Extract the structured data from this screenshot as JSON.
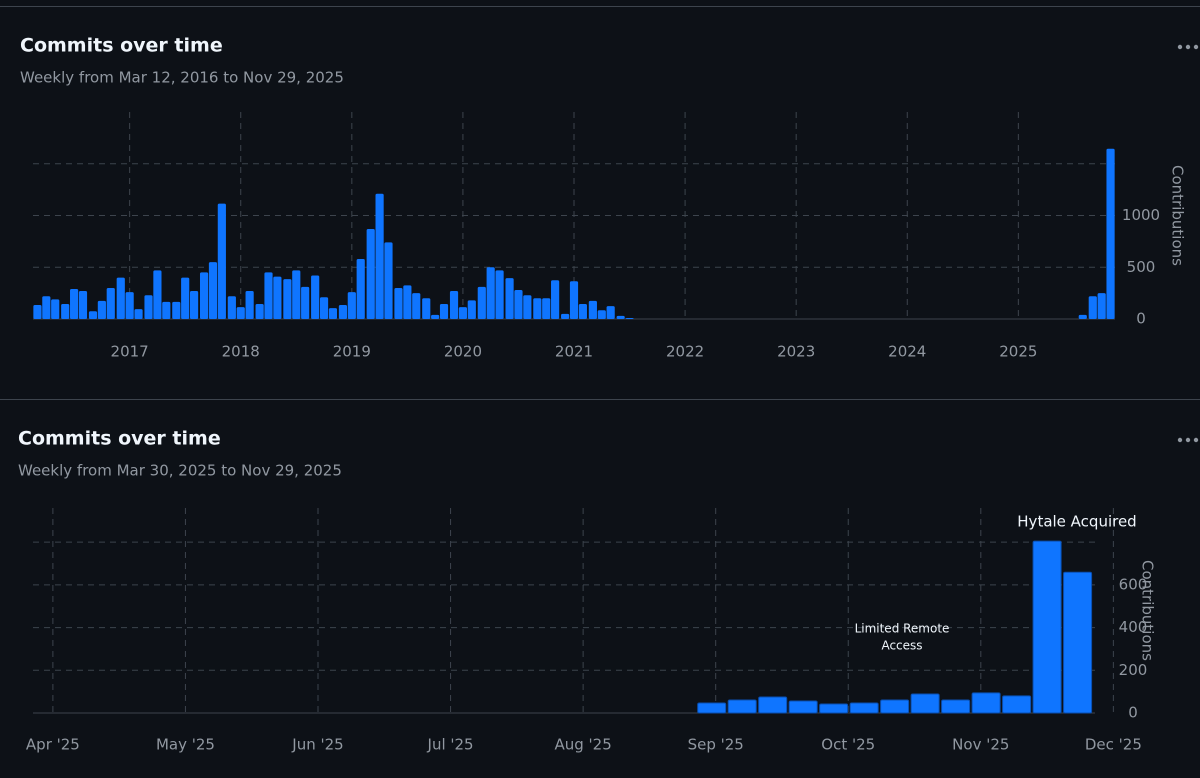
{
  "chart_data": [
    {
      "type": "bar",
      "title": "Commits over time",
      "subtitle": "Weekly from Mar 12, 2016 to Nov 29, 2025",
      "y_axis_label": "Contributions",
      "color": "#0f75ff",
      "grid": true,
      "x": [
        2016.17,
        2016.25,
        2016.33,
        2016.42,
        2016.5,
        2016.58,
        2016.67,
        2016.75,
        2016.83,
        2016.92,
        2017,
        2017.08,
        2017.17,
        2017.25,
        2017.33,
        2017.42,
        2017.5,
        2017.58,
        2017.67,
        2017.75,
        2017.83,
        2017.92,
        2018,
        2018.08,
        2018.17,
        2018.25,
        2018.33,
        2018.42,
        2018.5,
        2018.58,
        2018.67,
        2018.75,
        2018.83,
        2018.92,
        2019,
        2019.08,
        2019.17,
        2019.25,
        2019.33,
        2019.42,
        2019.5,
        2019.58,
        2019.67,
        2019.75,
        2019.83,
        2019.92,
        2020,
        2020.08,
        2020.17,
        2020.25,
        2020.33,
        2020.42,
        2020.5,
        2020.58,
        2020.67,
        2020.75,
        2020.83,
        2020.92,
        2021,
        2021.08,
        2021.17,
        2021.25,
        2021.33,
        2021.42,
        2021.5,
        2025.58,
        2025.67,
        2025.75,
        2025.83
      ],
      "values": [
        135,
        220,
        190,
        145,
        290,
        270,
        75,
        175,
        300,
        400,
        260,
        95,
        230,
        470,
        165,
        165,
        400,
        270,
        450,
        550,
        1115,
        220,
        115,
        270,
        145,
        450,
        410,
        385,
        470,
        310,
        420,
        210,
        105,
        135,
        260,
        580,
        870,
        1210,
        740,
        300,
        325,
        250,
        200,
        40,
        145,
        270,
        115,
        180,
        310,
        500,
        470,
        395,
        280,
        230,
        200,
        200,
        375,
        50,
        365,
        145,
        175,
        85,
        125,
        30,
        10,
        40,
        220,
        250,
        1645
      ],
      "xlim": [
        2016.13,
        2025.87
      ],
      "xticks": [
        2017,
        2018,
        2019,
        2020,
        2021,
        2022,
        2023,
        2024,
        2025
      ],
      "ylim": [
        0,
        2000
      ],
      "yticks": [
        0,
        500,
        1000
      ],
      "ygrid": [
        0,
        500,
        1000,
        1500
      ]
    },
    {
      "type": "bar",
      "title": "Commits over time",
      "subtitle": "Weekly from Mar 30, 2025 to Nov 29, 2025",
      "y_axis_label": "Contributions",
      "color": "#0f75ff",
      "grid": true,
      "x": [
        8.97,
        9.2,
        9.43,
        9.66,
        9.89,
        10.12,
        10.35,
        10.58,
        10.81,
        11.04,
        11.27,
        11.5,
        11.73
      ],
      "values": [
        47,
        61,
        75,
        56,
        42,
        47,
        61,
        89,
        61,
        94,
        80,
        805,
        659
      ],
      "xlim": [
        3.85,
        12.05
      ],
      "xticks": [
        {
          "value": 4,
          "label": "Apr '25"
        },
        {
          "value": 5,
          "label": "May '25"
        },
        {
          "value": 6,
          "label": "Jun '25"
        },
        {
          "value": 7,
          "label": "Jul '25"
        },
        {
          "value": 8,
          "label": "Aug '25"
        },
        {
          "value": 9,
          "label": "Sep '25"
        },
        {
          "value": 10,
          "label": "Oct '25"
        },
        {
          "value": 11,
          "label": "Nov '25"
        },
        {
          "value": 12,
          "label": "Dec '25"
        }
      ],
      "ylim": [
        0,
        960
      ],
      "yticks": [
        0,
        200,
        400,
        600
      ],
      "ygrid": [
        0,
        200,
        400,
        600,
        800
      ],
      "annotations": [
        {
          "lines": [
            "Limited Remote",
            "Access"
          ]
        },
        {
          "lines": [
            "Hytale Acquired"
          ]
        }
      ]
    }
  ]
}
